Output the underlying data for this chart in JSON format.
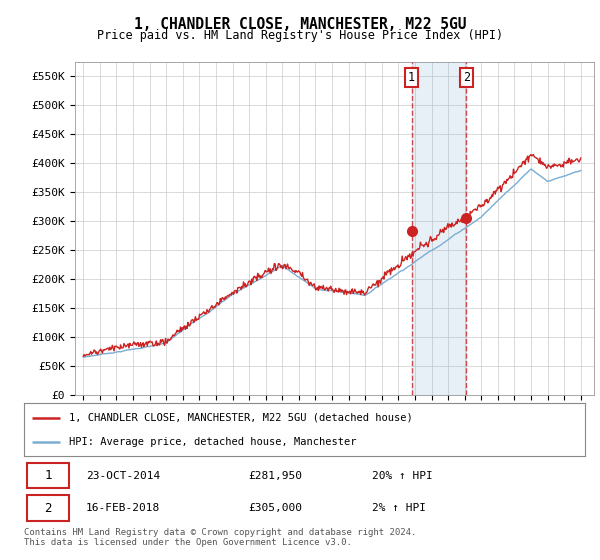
{
  "title": "1, CHANDLER CLOSE, MANCHESTER, M22 5GU",
  "subtitle": "Price paid vs. HM Land Registry's House Price Index (HPI)",
  "ylabel_ticks": [
    "£0",
    "£50K",
    "£100K",
    "£150K",
    "£200K",
    "£250K",
    "£300K",
    "£350K",
    "£400K",
    "£450K",
    "£500K",
    "£550K"
  ],
  "ylim": [
    0,
    575000
  ],
  "ytick_vals": [
    0,
    50000,
    100000,
    150000,
    200000,
    250000,
    300000,
    350000,
    400000,
    450000,
    500000,
    550000
  ],
  "hpi_color": "#7aadd4",
  "price_color": "#cc2222",
  "sale1_date": "23-OCT-2014",
  "sale1_price": "£281,950",
  "sale1_hpi": "20% ↑ HPI",
  "sale2_date": "16-FEB-2018",
  "sale2_price": "£305,000",
  "sale2_hpi": "2% ↑ HPI",
  "legend_line1": "1, CHANDLER CLOSE, MANCHESTER, M22 5GU (detached house)",
  "legend_line2": "HPI: Average price, detached house, Manchester",
  "footer": "Contains HM Land Registry data © Crown copyright and database right 2024.\nThis data is licensed under the Open Government Licence v3.0.",
  "background_color": "#ffffff",
  "grid_color": "#cccccc",
  "sale1_x": 2014.8,
  "sale2_x": 2018.1,
  "sale1_y": 281950,
  "sale2_y": 305000,
  "xlim_left": 1994.5,
  "xlim_right": 2025.8
}
